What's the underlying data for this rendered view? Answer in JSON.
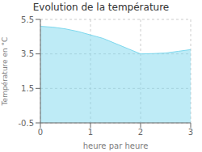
{
  "chart_data": {
    "type": "area",
    "title": "Evolution de la température",
    "xlabel": "heure par heure",
    "ylabel": "Température en °C",
    "x": [
      0,
      0.25,
      0.5,
      0.75,
      1.0,
      1.25,
      1.5,
      1.75,
      2.0,
      2.25,
      2.5,
      2.75,
      3.0
    ],
    "values": [
      5.1,
      5.05,
      4.95,
      4.8,
      4.6,
      4.4,
      4.1,
      3.8,
      3.5,
      3.52,
      3.55,
      3.65,
      3.75
    ],
    "xlim": [
      0,
      3
    ],
    "ylim": [
      -0.5,
      5.5
    ],
    "xticks": [
      0,
      1,
      2,
      3
    ],
    "yticks": [
      -0.5,
      1.5,
      3.5,
      5.5
    ],
    "color": "#7dd8ee",
    "grid": true
  }
}
